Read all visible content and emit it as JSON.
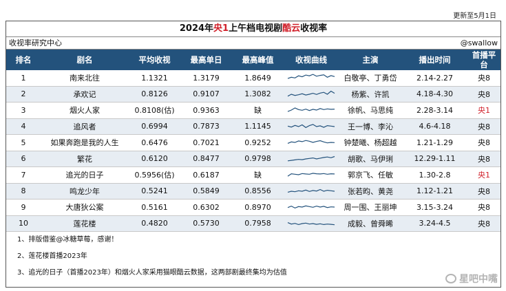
{
  "update_text": "更新至5月1日",
  "title": {
    "prefix": "2024年",
    "highlight1": "央1",
    "middle": "上午档电视剧",
    "highlight2": "酷云",
    "suffix": "收视率"
  },
  "subheader": {
    "left": "收视率研究中心",
    "right": "@swallow"
  },
  "columns": [
    "排名",
    "剧名",
    "平均收视",
    "最高单日",
    "最高峰值",
    "收视曲线",
    "主演",
    "播出时间",
    "首播平台"
  ],
  "rows": [
    {
      "rank": "1",
      "name": "南来北往",
      "avg": "1.1321",
      "max_day": "1.3179",
      "peak": "1.8649",
      "cast": "白敬亭、丁勇岱",
      "time": "2.14-2.27",
      "platform": "央8",
      "spark": [
        0.42,
        0.55,
        0.48,
        0.7,
        0.6,
        0.78,
        0.7,
        0.85,
        0.66,
        0.74,
        0.8,
        0.55,
        0.72,
        0.62
      ]
    },
    {
      "rank": "2",
      "name": "承欢记",
      "avg": "0.8126",
      "max_day": "0.9107",
      "peak": "1.3082",
      "cast": "杨紫、许凯",
      "time": "4.18-4.30",
      "platform": "央8",
      "spark": [
        0.3,
        0.5,
        0.38,
        0.45,
        0.55,
        0.42,
        0.5,
        0.6,
        0.48,
        0.62,
        0.7,
        0.5,
        0.82,
        0.6
      ]
    },
    {
      "rank": "3",
      "name": "烟火人家",
      "avg": "0.8108(估)",
      "max_day": "0.9363",
      "peak": "缺",
      "cast": "徐帆、马思纯",
      "time": "2.28-3.14",
      "platform": "央1",
      "spark": [
        0.35,
        0.5,
        0.72,
        0.55,
        0.48,
        0.6,
        0.45,
        0.58,
        0.5,
        0.66,
        0.55,
        0.62,
        0.58,
        0.6
      ]
    },
    {
      "rank": "4",
      "name": "追风者",
      "avg": "0.6994",
      "max_day": "0.7873",
      "peak": "1.1145",
      "cast": "王一博、李沁",
      "time": "4.6-4.18",
      "platform": "央8",
      "spark": [
        0.55,
        0.45,
        0.62,
        0.5,
        0.68,
        0.4,
        0.6,
        0.72,
        0.5,
        0.58,
        0.42,
        0.6,
        0.55,
        0.5
      ]
    },
    {
      "rank": "5",
      "name": "如果奔跑是我的人生",
      "avg": "0.6476",
      "max_day": "0.7021",
      "peak": "0.9252",
      "cast": "钟楚曦、杨超越",
      "time": "1.21-1.29",
      "platform": "央8",
      "spark": [
        0.4,
        0.55,
        0.5,
        0.65,
        0.58,
        0.7,
        0.62,
        0.5,
        0.6,
        0.68,
        0.55,
        0.45,
        0.5,
        0.48
      ]
    },
    {
      "rank": "6",
      "name": "繁花",
      "avg": "0.6120",
      "max_day": "0.8477",
      "peak": "0.9798",
      "cast": "胡歌、马伊琍",
      "time": "12.29-1.11",
      "platform": "央8",
      "spark": [
        0.3,
        0.35,
        0.4,
        0.45,
        0.42,
        0.5,
        0.55,
        0.6,
        0.5,
        0.58,
        0.65,
        0.7,
        0.62,
        0.75
      ]
    },
    {
      "rank": "7",
      "name": "追光的日子",
      "avg": "0.5956(估)",
      "max_day": "0.6187",
      "peak": "缺",
      "cast": "郭京飞、任敏",
      "time": "1.30-2.8",
      "platform": "央1",
      "spark": [
        0.35,
        0.6,
        0.55,
        0.5,
        0.62,
        0.58,
        0.55,
        0.65,
        0.6,
        0.58,
        0.62,
        0.55,
        0.6,
        0.58
      ]
    },
    {
      "rank": "8",
      "name": "鸣龙少年",
      "avg": "0.5241",
      "max_day": "0.5849",
      "peak": "0.8556",
      "cast": "张若昀、黄尧",
      "time": "1.12-1.21",
      "platform": "央8",
      "spark": [
        0.4,
        0.5,
        0.45,
        0.55,
        0.5,
        0.62,
        0.48,
        0.58,
        0.52,
        0.68,
        0.5,
        0.6,
        0.55,
        0.5
      ]
    },
    {
      "rank": "9",
      "name": "大唐狄公案",
      "avg": "0.5161",
      "max_day": "0.6302",
      "peak": "0.8970",
      "cast": "周一围、王丽坤",
      "time": "3.15-3.24",
      "platform": "央8",
      "spark": [
        0.45,
        0.6,
        0.4,
        0.55,
        0.5,
        0.62,
        0.55,
        0.48,
        0.6,
        0.5,
        0.58,
        0.45,
        0.52,
        0.5
      ]
    },
    {
      "rank": "10",
      "name": "莲花楼",
      "avg": "0.4820",
      "max_day": "0.5730",
      "peak": "0.7958",
      "cast": "成毅、曾舜晞",
      "time": "3.24-4.5",
      "platform": "央8",
      "spark": [
        0.6,
        0.45,
        0.52,
        0.4,
        0.5,
        0.55,
        0.45,
        0.5,
        0.42,
        0.48,
        0.4,
        0.45,
        0.42,
        0.38
      ]
    }
  ],
  "notes": [
    "1、排版借鉴@冰糖草莓，感谢！",
    "2、莲花楼首播2023年",
    "3、追光的日子（首播2023年）和烟火人家采用猫眼酷云数据，这两部剧最终集均为估值"
  ],
  "watermark": "星吧中嘴",
  "colors": {
    "header_bg": "#23527c",
    "alt_row_bg": "#e7edf3",
    "highlight_red": "#d0202a"
  }
}
